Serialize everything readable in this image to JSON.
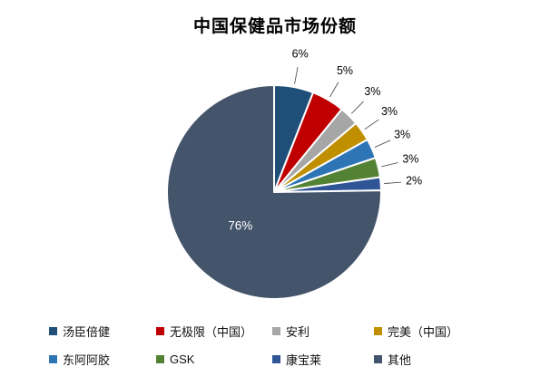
{
  "chart_data": {
    "type": "pie",
    "title": "中国保健品市场份额",
    "categories": [
      "汤臣倍健",
      "无极限（中国）",
      "安利",
      "完美（中国）",
      "东阿阿胶",
      "GSK",
      "康宝莱",
      "其他"
    ],
    "values": [
      6,
      5,
      3,
      3,
      3,
      3,
      2,
      76
    ],
    "labels": [
      "6%",
      "5%",
      "3%",
      "3%",
      "3%",
      "3%",
      "2%",
      "76%"
    ],
    "colors": [
      "#1F4E79",
      "#C00000",
      "#A6A6A6",
      "#BF8F00",
      "#2E75B6",
      "#548235",
      "#2F5597",
      "#44546A"
    ],
    "slice_border_color": "#FFFFFF",
    "leader_line_color": "#404040",
    "legend_position": "bottom",
    "legend_rows": 2,
    "grid": false
  }
}
